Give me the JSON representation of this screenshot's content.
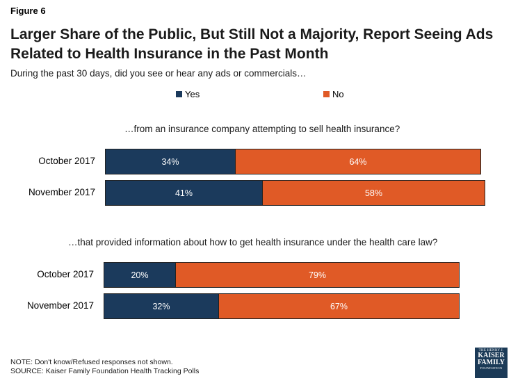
{
  "figure_label": "Figure 6",
  "title": "Larger Share of the Public, But Still Not a Majority, Report Seeing Ads Related to Health Insurance in the Past Month",
  "subtitle": "During the past 30 days, did you see or hear any ads or commercials…",
  "colors": {
    "yes": "#1b3a5c",
    "no": "#e05a26"
  },
  "chart_data": {
    "type": "bar",
    "orientation": "horizontal",
    "stacked": true,
    "legend": [
      {
        "name": "Yes",
        "color": "#1b3a5c"
      },
      {
        "name": "No",
        "color": "#e05a26"
      }
    ],
    "legend_position": "top",
    "groups": [
      {
        "title": "…from an insurance company attempting to sell health insurance?",
        "rows": [
          {
            "category": "October 2017",
            "yes": 34,
            "no": 64,
            "yes_label": "34%",
            "no_label": "64%"
          },
          {
            "category": "November 2017",
            "yes": 41,
            "no": 58,
            "yes_label": "41%",
            "no_label": "58%"
          }
        ]
      },
      {
        "title": "…that provided information about how to get health insurance under the health care law?",
        "rows": [
          {
            "category": "October 2017",
            "yes": 20,
            "no": 79,
            "yes_label": "20%",
            "no_label": "79%"
          },
          {
            "category": "November 2017",
            "yes": 32,
            "no": 67,
            "yes_label": "32%",
            "no_label": "67%"
          }
        ]
      }
    ],
    "xlim": [
      0,
      100
    ],
    "grid": false
  },
  "notes": {
    "note": "NOTE: Don't know/Refused responses not shown.",
    "source": "SOURCE: Kaiser Family Foundation Health Tracking Polls"
  },
  "logo": {
    "line1": "THE HENRY J.",
    "line2": "KAISER",
    "line3": "FAMILY",
    "line4": "FOUNDATION"
  }
}
